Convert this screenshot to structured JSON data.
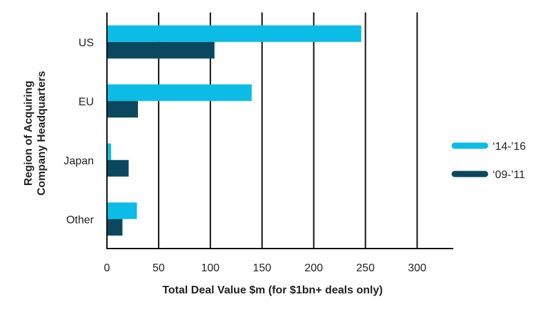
{
  "chart_data": {
    "type": "bar",
    "orientation": "horizontal",
    "categories": [
      "US",
      "EU",
      "Japan",
      "Other"
    ],
    "series": [
      {
        "name": "‘14-’16",
        "values": [
          246,
          140,
          4,
          29
        ],
        "color": "#0bbde6"
      },
      {
        "name": "‘09-’11",
        "values": [
          104,
          30,
          21,
          15
        ],
        "color": "#0b4860"
      }
    ],
    "xlabel": "Total Deal Value $m (for $1bn+ deals only)",
    "ylabel": [
      "Region of Acquiring",
      "Company Headquarters"
    ],
    "xlim": [
      0,
      335
    ],
    "xticks": [
      0,
      50,
      100,
      150,
      200,
      250,
      300
    ],
    "grid": "vertical",
    "legend": "right"
  }
}
